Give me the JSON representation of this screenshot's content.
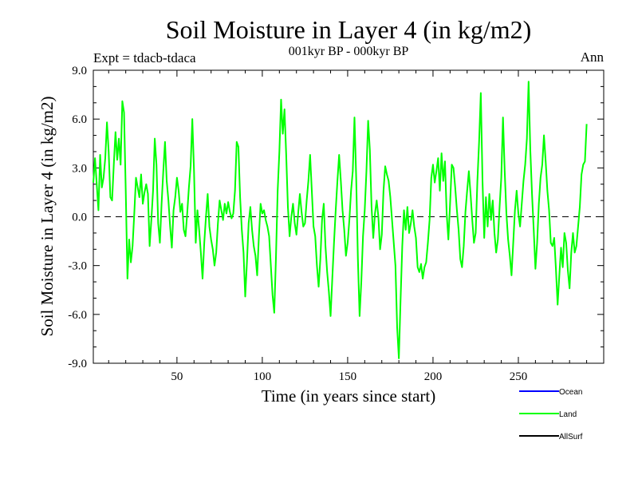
{
  "chart_data": {
    "type": "line",
    "title": "Soil Moisture in Layer 4 (in kg/m2)",
    "subtitle": "001kyr BP - 000kyr BP",
    "expt_label": "Expt = tdacb-tdaca",
    "season_label": "Ann",
    "xlabel": "Time (in years since start)",
    "ylabel": "Soil Moisture in Layer 4 (in kg/m2)",
    "xlim": [
      1,
      300
    ],
    "ylim": [
      -9,
      9
    ],
    "x_ticks": [
      50,
      100,
      150,
      200,
      250
    ],
    "y_ticks": [
      -9,
      -6,
      -3,
      0,
      3,
      6,
      9
    ],
    "y_tick_labels": [
      "-9.0",
      "-6.0",
      "-3.0",
      "0.0",
      "3.0",
      "6.0",
      "9.0"
    ],
    "x_tick_labels": [
      "50",
      "100",
      "150",
      "200",
      "250"
    ],
    "zero_line": true,
    "legend": {
      "position": "bottom-right",
      "entries": [
        {
          "label": "Ocean",
          "color": "#0000ff"
        },
        {
          "label": "Land",
          "color": "#00ff00"
        },
        {
          "label": "AllSurf",
          "color": "#000000"
        }
      ]
    },
    "series": [
      {
        "name": "Land",
        "color": "#00ff00",
        "x_start": 1,
        "x_step": 1,
        "values": [
          2.1,
          3.6,
          2.0,
          0.4,
          3.8,
          1.8,
          2.4,
          3.6,
          5.8,
          4.0,
          1.2,
          1.0,
          3.2,
          5.2,
          3.5,
          4.8,
          3.2,
          7.1,
          6.4,
          1.6,
          -3.8,
          -1.4,
          -2.8,
          -1.8,
          0.2,
          2.4,
          1.8,
          1.2,
          2.6,
          0.8,
          1.5,
          2.0,
          1.4,
          -1.8,
          -0.2,
          1.6,
          4.8,
          3.2,
          -0.4,
          -1.6,
          0.8,
          2.8,
          4.6,
          2.2,
          1.0,
          -0.6,
          -1.9,
          0.4,
          1.2,
          2.4,
          1.6,
          0.3,
          0.8,
          -0.8,
          -1.2,
          0.2,
          1.8,
          3.1,
          6.0,
          2.8,
          -1.6,
          0.4,
          -0.8,
          -2.2,
          -3.8,
          -1.6,
          0.0,
          1.4,
          -0.6,
          -1.4,
          -2.0,
          -3.0,
          -2.2,
          -0.4,
          1.0,
          0.4,
          -0.2,
          0.8,
          0.2,
          0.9,
          0.3,
          -0.1,
          0.2,
          1.6,
          4.6,
          4.3,
          1.2,
          -0.8,
          -2.2,
          -4.9,
          -2.8,
          -0.4,
          0.6,
          -0.8,
          -1.8,
          -2.4,
          -3.6,
          -1.2,
          0.8,
          0.2,
          0.4,
          -0.2,
          -0.6,
          -1.2,
          -3.0,
          -4.8,
          -5.9,
          -2.5,
          1.6,
          4.0,
          7.2,
          5.1,
          6.6,
          3.8,
          0.6,
          -1.2,
          0.0,
          0.8,
          -0.4,
          -1.1,
          0.2,
          1.4,
          0.3,
          -0.6,
          -0.4,
          1.0,
          2.2,
          3.8,
          1.6,
          -0.6,
          -1.2,
          -3.0,
          -4.3,
          -2.6,
          -0.2,
          0.8,
          -1.8,
          -3.4,
          -4.6,
          -6.1,
          -3.8,
          -1.6,
          0.4,
          2.2,
          3.8,
          2.2,
          0.4,
          -0.8,
          -2.4,
          -1.6,
          -0.2,
          1.6,
          2.8,
          6.1,
          2.4,
          -2.6,
          -6.1,
          -4.0,
          -1.2,
          0.4,
          2.8,
          5.9,
          4.1,
          0.6,
          -1.3,
          0.2,
          1.0,
          0.0,
          -2.0,
          -1.1,
          1.6,
          3.1,
          2.6,
          2.2,
          1.2,
          -0.2,
          -1.6,
          -3.0,
          -6.8,
          -8.7,
          -5.1,
          -1.8,
          0.4,
          -0.8,
          0.6,
          -1.0,
          -0.4,
          0.4,
          -0.6,
          -1.3,
          -3.1,
          -3.4,
          -2.9,
          -3.8,
          -3.1,
          -2.8,
          -1.6,
          -0.2,
          2.4,
          3.2,
          2.1,
          2.8,
          3.6,
          1.6,
          3.9,
          2.2,
          3.4,
          0.2,
          -1.4,
          0.8,
          3.2,
          3.0,
          1.8,
          0.4,
          -0.8,
          -2.6,
          -3.1,
          -1.8,
          0.3,
          1.6,
          2.8,
          1.4,
          -0.2,
          -1.6,
          -1.0,
          2.2,
          4.6,
          7.6,
          2.2,
          -1.3,
          1.2,
          -0.6,
          1.4,
          -0.2,
          1.0,
          -1.0,
          -2.2,
          -1.4,
          0.6,
          2.4,
          6.1,
          2.8,
          0.2,
          -1.4,
          -2.4,
          -3.6,
          -1.6,
          0.4,
          1.6,
          0.2,
          -0.6,
          0.8,
          2.2,
          3.2,
          4.8,
          8.3,
          4.1,
          1.4,
          -0.8,
          -3.2,
          -1.6,
          0.8,
          2.4,
          3.2,
          5.0,
          3.4,
          1.6,
          0.4,
          -1.6,
          -1.8,
          -1.3,
          -3.2,
          -5.4,
          -3.6,
          -1.9,
          -3.1,
          -1.0,
          -1.6,
          -3.3,
          -4.4,
          -2.2,
          -1.0,
          -2.2,
          -1.8,
          -0.6,
          0.6,
          2.6,
          3.2,
          3.4,
          5.7
        ]
      }
    ]
  }
}
